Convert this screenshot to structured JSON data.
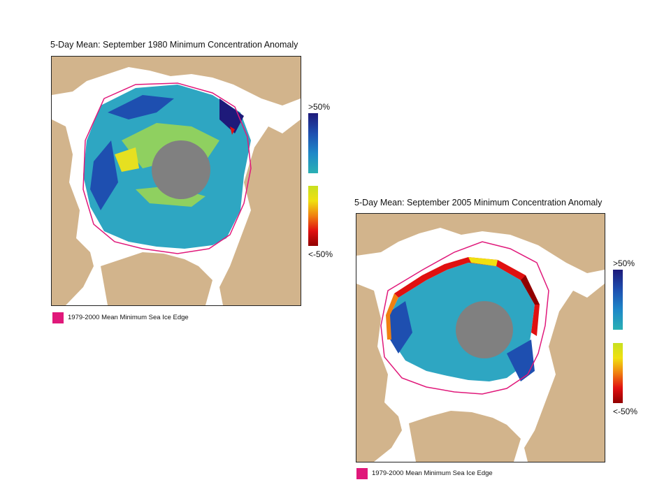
{
  "colors": {
    "land": "#d2b48c",
    "water": "#ffffff",
    "pole_hole": "#808080",
    "mean_edge": "#e0187a",
    "positive_scale": [
      "#1e1a7a",
      "#1e4fb0",
      "#1e88c8",
      "#2ab0b4"
    ],
    "negative_scale": [
      "#c8e020",
      "#f0e010",
      "#f08010",
      "#e01010",
      "#900000"
    ]
  },
  "maps": [
    {
      "title": "5-Day Mean: September 1980 Minimum Concentration Anomaly",
      "scale_top_label": ">50%",
      "scale_bottom_label": "<-50%",
      "legend_label": "1979-2000 Mean Minimum Sea Ice Edge",
      "legend_swatch_icon": "pink-square-icon"
    },
    {
      "title": "5-Day Mean: September 2005 Minimum Concentration Anomaly",
      "scale_top_label": ">50%",
      "scale_bottom_label": "<-50%",
      "legend_label": "1979-2000 Mean Minimum Sea Ice Edge",
      "legend_swatch_icon": "pink-square-icon"
    }
  ]
}
